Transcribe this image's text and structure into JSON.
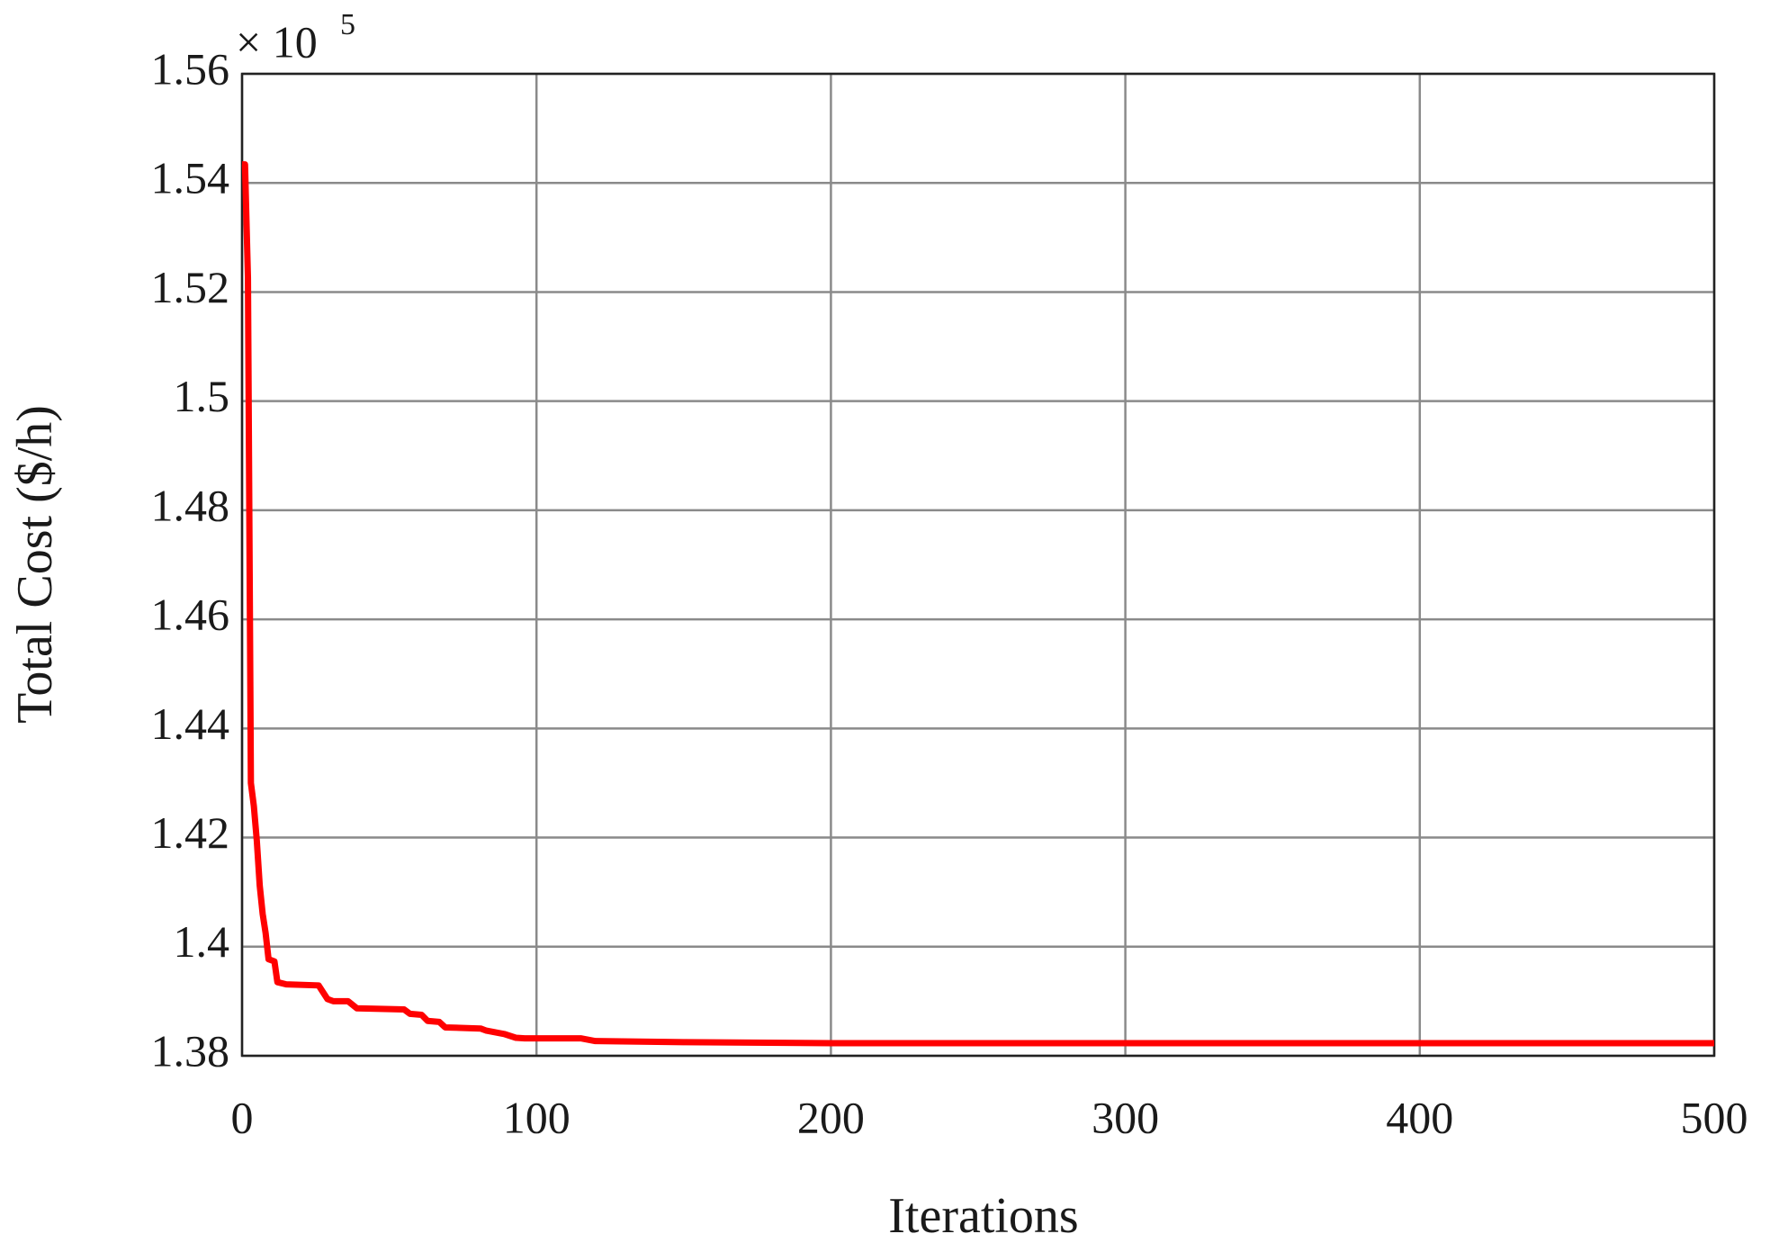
{
  "chart_data": {
    "type": "line",
    "x_label": "Iterations",
    "y_label": "Total Cost ($/h)",
    "y_multiplier": {
      "base": "× 10",
      "exponent": "5"
    },
    "xlim": [
      0,
      500
    ],
    "xticks": [
      0,
      100,
      200,
      300,
      400,
      500
    ],
    "ylim": [
      1.38,
      1.56
    ],
    "yticks": [
      1.38,
      1.4,
      1.42,
      1.44,
      1.46,
      1.48,
      1.5,
      1.52,
      1.54,
      1.56
    ],
    "grid": true,
    "x": [
      0,
      1,
      2,
      3,
      4,
      5,
      6,
      7,
      8,
      9,
      11,
      12,
      15,
      26,
      29,
      31,
      36,
      39,
      55,
      57,
      61,
      63,
      67,
      69,
      81,
      83,
      89,
      93,
      96,
      115,
      120,
      150,
      200,
      500
    ],
    "series": [
      {
        "color": "#ff0000",
        "values": [
          1.5434,
          1.5434,
          1.5226,
          1.43,
          1.4258,
          1.4195,
          1.4112,
          1.406,
          1.4025,
          1.3977,
          1.3973,
          1.3935,
          1.3931,
          1.3929,
          1.3904,
          1.39,
          1.39,
          1.3887,
          1.3885,
          1.3877,
          1.3875,
          1.3864,
          1.3862,
          1.3852,
          1.385,
          1.3846,
          1.384,
          1.3833,
          1.3832,
          1.3832,
          1.3827,
          1.3825,
          1.3823,
          1.3823
        ]
      }
    ]
  }
}
